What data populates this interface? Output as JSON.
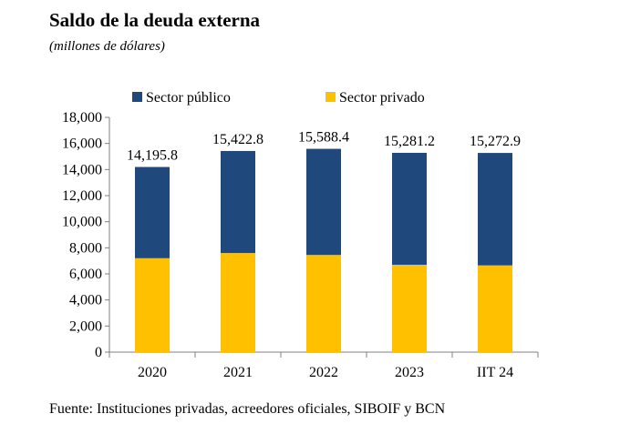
{
  "title": "Saldo de la deuda externa",
  "subtitle": "(millones de dólares)",
  "source": "Fuente: Instituciones privadas, acreedores oficiales, SIBOIF y BCN",
  "chart_data": {
    "type": "bar",
    "stacked": true,
    "categories": [
      "2020",
      "2021",
      "2022",
      "2023",
      "IIT 24"
    ],
    "series": [
      {
        "name": "Sector privado",
        "color": "#FFC000",
        "values": [
          7200,
          7600,
          7450,
          6700,
          6650
        ]
      },
      {
        "name": "Sector público",
        "color": "#1F497D",
        "values": [
          6995.8,
          7822.8,
          8138.4,
          8581.2,
          8622.9
        ]
      }
    ],
    "totals": [
      "14,195.8",
      "15,422.8",
      "15,588.4",
      "15,281.2",
      "15,272.9"
    ],
    "legend_order": [
      "Sector público",
      "Sector privado"
    ],
    "legend_position": "top",
    "ylim": [
      0,
      18000
    ],
    "yticks": [
      "0",
      "2,000",
      "4,000",
      "6,000",
      "8,000",
      "10,000",
      "12,000",
      "14,000",
      "16,000",
      "18,000"
    ],
    "grid": false
  }
}
